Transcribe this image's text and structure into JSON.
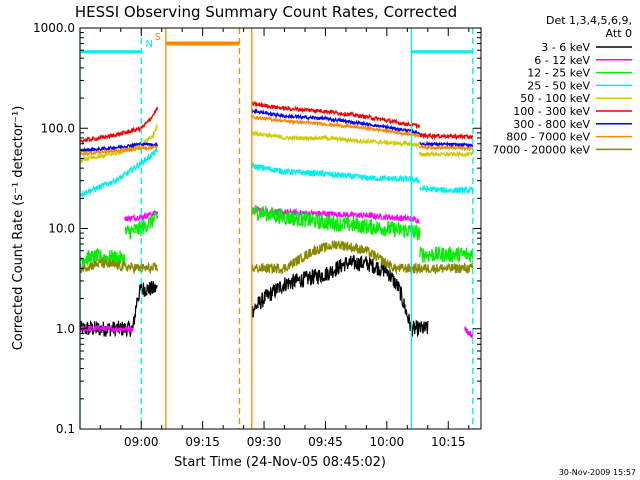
{
  "chart_data": {
    "type": "line",
    "title": "HESSI Observing Summary Count Rates, Corrected",
    "xlabel": "Start Time (24-Nov-05 08:45:02)",
    "ylabel": "Corrected Count Rate (s⁻¹ detector⁻¹)",
    "timestamp": "30-Nov-2009 15:57",
    "yscale": "log",
    "xlim": [
      "08:45:02",
      "10:23:00"
    ],
    "ylim": [
      0.1,
      1000.0
    ],
    "x_tick_labels": [
      "09:00",
      "09:15",
      "09:30",
      "09:45",
      "10:00",
      "10:15"
    ],
    "x_ticks": [
      "09:00",
      "09:15",
      "09:30",
      "09:45",
      "10:00",
      "10:15"
    ],
    "y_ticks": [
      0.1,
      1.0,
      10.0,
      100.0,
      1000.0
    ],
    "y_tick_labels": [
      "0.1",
      "1.0",
      "10.0",
      "100.0",
      "1000.0"
    ],
    "legend": {
      "placement": "right",
      "header": [
        "Det 1,3,4,5,6,9,",
        "Att 0"
      ],
      "entries": [
        {
          "label": "3 - 6 keV",
          "color": "#000000"
        },
        {
          "label": "6 - 12 keV",
          "color": "#ff00ff"
        },
        {
          "label": "12 - 25 keV",
          "color": "#00ee00"
        },
        {
          "label": "25 - 50 keV",
          "color": "#00eeee"
        },
        {
          "label": "50 - 100 keV",
          "color": "#cccc00"
        },
        {
          "label": "100 - 300 keV",
          "color": "#ee0000"
        },
        {
          "label": "300 - 800 keV",
          "color": "#0000ee"
        },
        {
          "label": "800 - 7000 keV",
          "color": "#ff8800"
        },
        {
          "label": "7000 - 20000 keV",
          "color": "#888800"
        }
      ]
    },
    "markers": [
      {
        "label": "N",
        "color": "#00eeee",
        "time": "09:00"
      },
      {
        "label": "S",
        "color": "#ff8800",
        "time": "09:06"
      }
    ],
    "night_bars": [
      {
        "from": "08:45:02",
        "to": "09:00",
        "y": 580,
        "color": "#00eeee"
      },
      {
        "from": "10:06",
        "to": "10:21",
        "y": 580,
        "color": "#00eeee"
      }
    ],
    "saa_bar": {
      "from": "09:06",
      "to": "09:24",
      "y": 700,
      "color": "#ff8800"
    },
    "vlines": [
      {
        "time": "08:45:02",
        "color": "#00eeee",
        "style": "solid"
      },
      {
        "time": "09:00",
        "color": "#00eeee",
        "style": "dashed"
      },
      {
        "time": "09:06",
        "color": "#ff8800",
        "style": "solid"
      },
      {
        "time": "09:24",
        "color": "#ff8800",
        "style": "dashed"
      },
      {
        "time": "09:27",
        "color": "#ff8800",
        "style": "solid"
      },
      {
        "time": "10:06",
        "color": "#00eeee",
        "style": "solid"
      },
      {
        "time": "10:21",
        "color": "#00eeee",
        "style": "dashed"
      }
    ],
    "series": [
      {
        "name": "3 - 6 keV",
        "color": "#000000",
        "noise": 0.08,
        "segments": [
          {
            "x": [
              "08:45",
              "08:55",
              "08:56",
              "08:58",
              "08:59",
              "09:00",
              "09:01",
              "09:04"
            ],
            "y": [
              1.0,
              1.0,
              1.0,
              1.0,
              2.0,
              2.5,
              2.5,
              2.5
            ]
          },
          {
            "x": [
              "09:27",
              "09:30",
              "09:35",
              "09:45",
              "09:50",
              "09:55",
              "10:00",
              "10:03",
              "10:06",
              "10:10"
            ],
            "y": [
              1.5,
              2.0,
              2.8,
              3.5,
              4.5,
              4.5,
              3.8,
              2.5,
              1.0,
              1.0
            ]
          }
        ]
      },
      {
        "name": "6 - 12 keV",
        "color": "#ff00ff",
        "noise": 0.03,
        "segments": [
          {
            "x": [
              "08:45",
              "08:55",
              "08:56",
              "08:58"
            ],
            "y": [
              1.0,
              1.0,
              1.0,
              1.0
            ]
          },
          {
            "x": [
              "08:56",
              "09:00",
              "09:04"
            ],
            "y": [
              12.5,
              13.0,
              14.5
            ]
          },
          {
            "x": [
              "09:27",
              "09:35",
              "09:45",
              "09:55",
              "10:00",
              "10:06",
              "10:08"
            ],
            "y": [
              15.5,
              14.5,
              14.0,
              13.5,
              13.0,
              12.5,
              12.0
            ]
          },
          {
            "x": [
              "10:19",
              "10:21"
            ],
            "y": [
              1.0,
              0.85
            ]
          }
        ]
      },
      {
        "name": "12 - 25 keV",
        "color": "#00ee00",
        "noise": 0.08,
        "segments": [
          {
            "x": [
              "08:45",
              "08:50",
              "08:56"
            ],
            "y": [
              5.0,
              5.2,
              5.0
            ]
          },
          {
            "x": [
              "08:56",
              "09:00",
              "09:04"
            ],
            "y": [
              9.0,
              10.0,
              13.0
            ]
          },
          {
            "x": [
              "09:27",
              "09:35",
              "09:45",
              "09:55",
              "10:05",
              "10:08"
            ],
            "y": [
              15.0,
              13.0,
              11.5,
              10.5,
              9.5,
              9.0
            ]
          },
          {
            "x": [
              "10:08",
              "10:15",
              "10:21"
            ],
            "y": [
              5.5,
              5.5,
              5.5
            ]
          }
        ]
      },
      {
        "name": "25 - 50 keV",
        "color": "#00eeee",
        "noise": 0.03,
        "segments": [
          {
            "x": [
              "08:45",
              "08:50",
              "08:55",
              "09:00",
              "09:04"
            ],
            "y": [
              22.0,
              26.0,
              32.0,
              45.0,
              60.0
            ]
          },
          {
            "x": [
              "09:27",
              "09:35",
              "09:45",
              "09:55",
              "10:05",
              "10:08"
            ],
            "y": [
              42.0,
              37.0,
              35.0,
              32.0,
              31.0,
              30.0
            ]
          },
          {
            "x": [
              "10:08",
              "10:15",
              "10:21"
            ],
            "y": [
              25.0,
              24.0,
              24.0
            ]
          }
        ]
      },
      {
        "name": "50 - 100 keV",
        "color": "#cccc00",
        "noise": 0.02,
        "segments": [
          {
            "x": [
              "08:45",
              "08:50",
              "08:55",
              "09:00",
              "09:03",
              "09:04"
            ],
            "y": [
              48.0,
              52.0,
              58.0,
              68.0,
              85.0,
              110.0
            ]
          },
          {
            "x": [
              "09:27",
              "09:35",
              "09:45",
              "09:55",
              "10:05",
              "10:08"
            ],
            "y": [
              90.0,
              80.0,
              80.0,
              74.0,
              70.0,
              68.0
            ]
          },
          {
            "x": [
              "10:08",
              "10:21"
            ],
            "y": [
              55.0,
              55.0
            ]
          }
        ]
      },
      {
        "name": "100 - 300 keV",
        "color": "#ee0000",
        "noise": 0.02,
        "segments": [
          {
            "x": [
              "08:45",
              "08:50",
              "08:55",
              "09:00",
              "09:02",
              "09:04"
            ],
            "y": [
              75.0,
              80.0,
              88.0,
              100.0,
              120.0,
              160.0
            ]
          },
          {
            "x": [
              "09:27",
              "09:35",
              "09:45",
              "09:55",
              "10:05",
              "10:08"
            ],
            "y": [
              175.0,
              158.0,
              148.0,
              130.0,
              110.0,
              105.0
            ]
          },
          {
            "x": [
              "10:08",
              "10:21"
            ],
            "y": [
              85.0,
              82.0
            ]
          }
        ]
      },
      {
        "name": "300 - 800 keV",
        "color": "#0000ee",
        "noise": 0.015,
        "segments": [
          {
            "x": [
              "08:45",
              "08:50",
              "08:55",
              "09:00",
              "09:04"
            ],
            "y": [
              60.0,
              62.0,
              65.0,
              70.0,
              68.0
            ]
          },
          {
            "x": [
              "09:27",
              "09:35",
              "09:45",
              "09:55",
              "10:05",
              "10:08"
            ],
            "y": [
              150.0,
              132.0,
              125.0,
              110.0,
              95.0,
              90.0
            ]
          },
          {
            "x": [
              "10:08",
              "10:21"
            ],
            "y": [
              70.0,
              68.0
            ]
          }
        ]
      },
      {
        "name": "800 - 7000 keV",
        "color": "#ff8800",
        "noise": 0.015,
        "segments": [
          {
            "x": [
              "08:45",
              "08:50",
              "08:55",
              "09:00",
              "09:04"
            ],
            "y": [
              55.0,
              58.0,
              60.0,
              63.0,
              65.0
            ]
          },
          {
            "x": [
              "09:27",
              "09:35",
              "09:45",
              "09:55",
              "10:05",
              "10:08"
            ],
            "y": [
              130.0,
              118.0,
              110.0,
              100.0,
              88.0,
              85.0
            ]
          },
          {
            "x": [
              "10:08",
              "10:21"
            ],
            "y": [
              65.0,
              63.0
            ]
          }
        ]
      },
      {
        "name": "7000 - 20000 keV",
        "color": "#888800",
        "noise": 0.05,
        "segments": [
          {
            "x": [
              "08:45",
              "08:50",
              "08:55",
              "09:00",
              "09:04"
            ],
            "y": [
              4.0,
              4.5,
              4.2,
              4.0,
              4.0
            ]
          },
          {
            "x": [
              "09:27",
              "09:35",
              "09:42",
              "09:48",
              "09:55",
              "10:02",
              "10:10",
              "10:21"
            ],
            "y": [
              4.0,
              4.0,
              6.0,
              7.0,
              6.0,
              4.0,
              4.0,
              4.0
            ]
          }
        ]
      }
    ]
  }
}
